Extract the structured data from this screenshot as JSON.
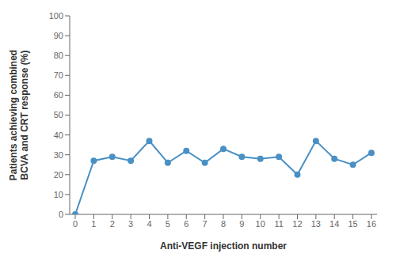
{
  "chart_data": {
    "type": "line",
    "x": [
      0,
      1,
      2,
      3,
      4,
      5,
      6,
      7,
      8,
      9,
      10,
      11,
      12,
      13,
      14,
      15,
      16
    ],
    "values": [
      0,
      27,
      29,
      27,
      37,
      26,
      32,
      26,
      33,
      29,
      28,
      29,
      20,
      37,
      28,
      25,
      31
    ],
    "color": "#4a90c4",
    "marker": "circle",
    "xlabel": "Anti-VEGF injection number",
    "ylabel": "Patients achieving combined\nBCVA and CRT response (%)",
    "xlim": [
      -0.3,
      16.3
    ],
    "xticks": [
      0,
      1,
      2,
      3,
      4,
      5,
      6,
      7,
      8,
      9,
      10,
      11,
      12,
      13,
      14,
      15,
      16
    ],
    "ylim": [
      0,
      100
    ],
    "yticks": [
      0,
      10,
      20,
      30,
      40,
      50,
      60,
      70,
      80,
      90,
      100
    ],
    "grid": false
  }
}
